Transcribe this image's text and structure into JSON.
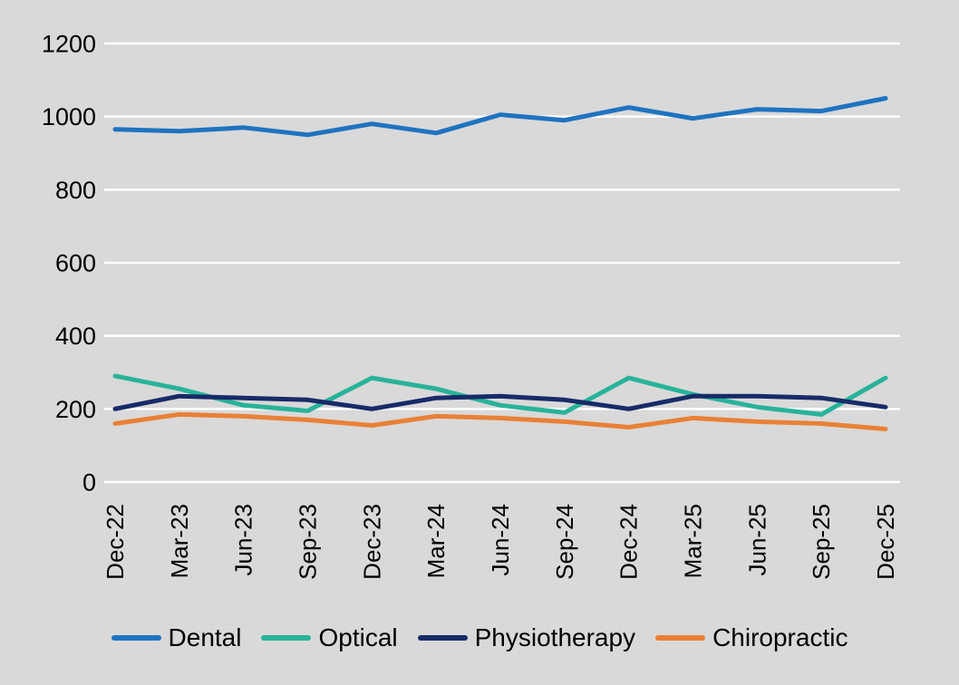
{
  "chart_data": {
    "type": "line",
    "title": "",
    "xlabel": "",
    "ylabel": "",
    "categories": [
      "Dec-22",
      "Mar-23",
      "Jun-23",
      "Sep-23",
      "Dec-23",
      "Mar-24",
      "Jun-24",
      "Sep-24",
      "Dec-24",
      "Mar-25",
      "Jun-25",
      "Sep-25",
      "Dec-25"
    ],
    "series": [
      {
        "name": "Dental",
        "color": "#1f73c0",
        "values": [
          965,
          960,
          970,
          950,
          980,
          955,
          1005,
          990,
          1025,
          995,
          1020,
          1015,
          1050
        ]
      },
      {
        "name": "Optical",
        "color": "#28b399",
        "values": [
          290,
          255,
          210,
          195,
          285,
          255,
          210,
          190,
          285,
          240,
          205,
          185,
          285
        ]
      },
      {
        "name": "Physiotherapy",
        "color": "#182a68",
        "values": [
          200,
          235,
          230,
          225,
          200,
          230,
          235,
          225,
          200,
          235,
          235,
          230,
          205
        ]
      },
      {
        "name": "Chiropractic",
        "color": "#e98136",
        "values": [
          160,
          185,
          180,
          170,
          155,
          180,
          175,
          165,
          150,
          175,
          165,
          160,
          145
        ]
      }
    ],
    "ylim": [
      0,
      1200
    ],
    "ytick_step": 200,
    "yticks": [
      0,
      200,
      400,
      600,
      800,
      1000,
      1200
    ],
    "grid": "horizontal-white-lines",
    "legend_position": "bottom-center",
    "background_color": "#d9d9d9",
    "gridline_color": "#ffffff",
    "x_label_rotation": -90
  }
}
